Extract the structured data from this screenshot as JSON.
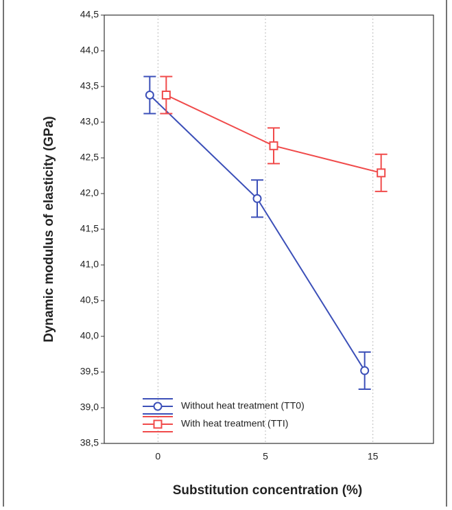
{
  "chart_data": {
    "type": "line",
    "x_label": "Substitution concentration (%)",
    "y_label": "Dynamic modulus of elasticity  (GPa)",
    "categories": [
      "0",
      "5",
      "15"
    ],
    "series": [
      {
        "name": "Without heat treatment (TT0)",
        "color": "#3b4fb8",
        "marker": "circle",
        "values": [
          43.38,
          41.93,
          39.52
        ],
        "errors": [
          0.26,
          0.26,
          0.26
        ]
      },
      {
        "name": "With heat treatment (TTI)",
        "color": "#f04a4a",
        "marker": "square",
        "values": [
          43.38,
          42.67,
          42.29
        ],
        "errors": [
          0.26,
          0.25,
          0.26
        ]
      }
    ],
    "ylim": [
      38.5,
      44.5
    ],
    "yticks": [
      {
        "value": 38.5,
        "label": "38,5"
      },
      {
        "value": 39,
        "label": "39,0"
      },
      {
        "value": 39.5,
        "label": "39,5"
      },
      {
        "value": 40,
        "label": "40,0"
      },
      {
        "value": 40.5,
        "label": "40,5"
      },
      {
        "value": 41,
        "label": "41,0"
      },
      {
        "value": 41.5,
        "label": "41,5"
      },
      {
        "value": 42,
        "label": "42,0"
      },
      {
        "value": 42.5,
        "label": "42,5"
      },
      {
        "value": 43,
        "label": "43,0"
      },
      {
        "value": 43.5,
        "label": "43,5"
      },
      {
        "value": 44,
        "label": "44,0"
      },
      {
        "value": 44.5,
        "label": "44,5"
      }
    ],
    "grid": "x",
    "legend": "lower left"
  }
}
